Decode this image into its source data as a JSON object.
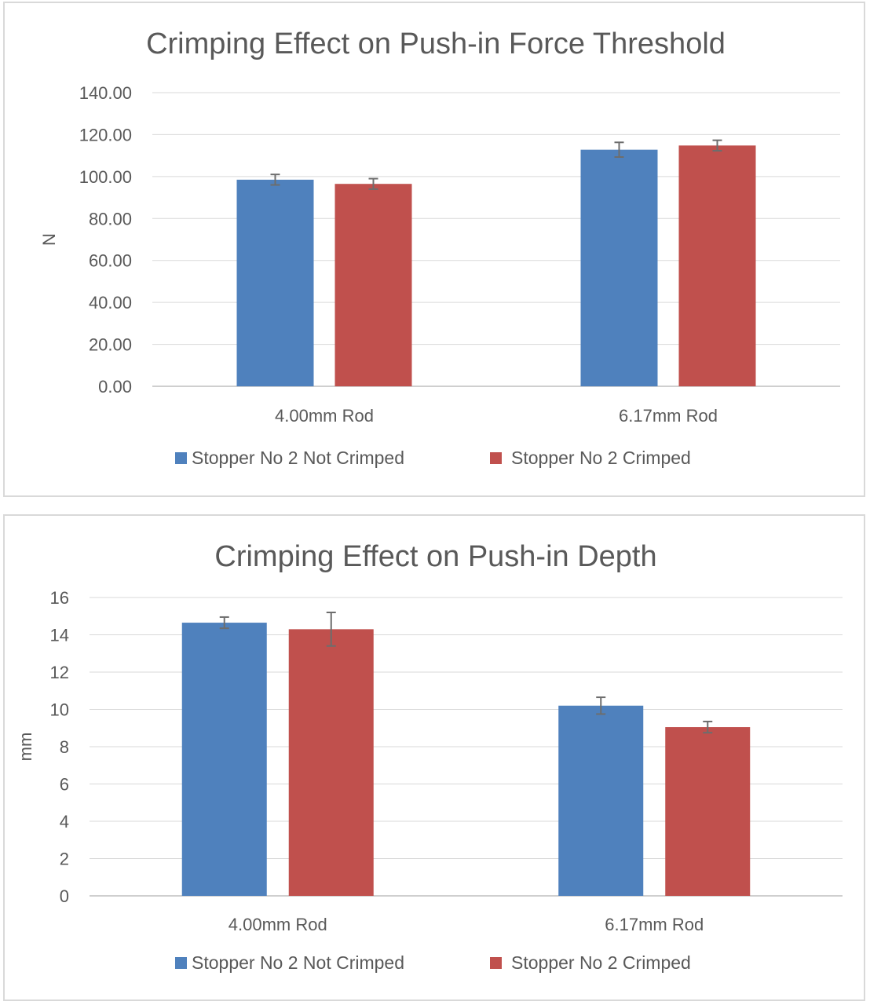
{
  "chart_data": [
    {
      "type": "bar",
      "title": "Crimping Effect on Push-in Force Threshold",
      "xlabel": "",
      "ylabel": "N",
      "categories": [
        "4.00mm Rod",
        "6.17mm Rod"
      ],
      "ylim": [
        0,
        140
      ],
      "yticks": [
        0,
        20,
        40,
        60,
        80,
        100,
        120,
        140
      ],
      "ytick_labels": [
        "0.00",
        "20.00",
        "40.00",
        "60.00",
        "80.00",
        "100.00",
        "120.00",
        "140.00"
      ],
      "grid": true,
      "legend_position": "bottom",
      "series": [
        {
          "name": "Stopper No 2 Not Crimped",
          "color": "#4f81bd",
          "values": [
            98.5,
            112.8
          ],
          "errors": [
            2.5,
            3.5
          ]
        },
        {
          "name": "Stopper No 2 Crimped",
          "color": "#c0504d",
          "values": [
            96.5,
            114.8
          ],
          "errors": [
            2.5,
            2.5
          ]
        }
      ]
    },
    {
      "type": "bar",
      "title": "Crimping Effect on Push-in Depth",
      "xlabel": "",
      "ylabel": "mm",
      "categories": [
        "4.00mm Rod",
        "6.17mm Rod"
      ],
      "ylim": [
        0,
        16
      ],
      "yticks": [
        0,
        2,
        4,
        6,
        8,
        10,
        12,
        14,
        16
      ],
      "ytick_labels": [
        "0",
        "2",
        "4",
        "6",
        "8",
        "10",
        "12",
        "14",
        "16"
      ],
      "grid": true,
      "legend_position": "bottom",
      "series": [
        {
          "name": "Stopper No 2 Not Crimped",
          "color": "#4f81bd",
          "values": [
            14.65,
            10.2
          ],
          "errors": [
            0.3,
            0.45
          ]
        },
        {
          "name": "Stopper No 2 Crimped",
          "color": "#c0504d",
          "values": [
            14.3,
            9.05
          ],
          "errors": [
            0.9,
            0.3
          ]
        }
      ]
    }
  ]
}
